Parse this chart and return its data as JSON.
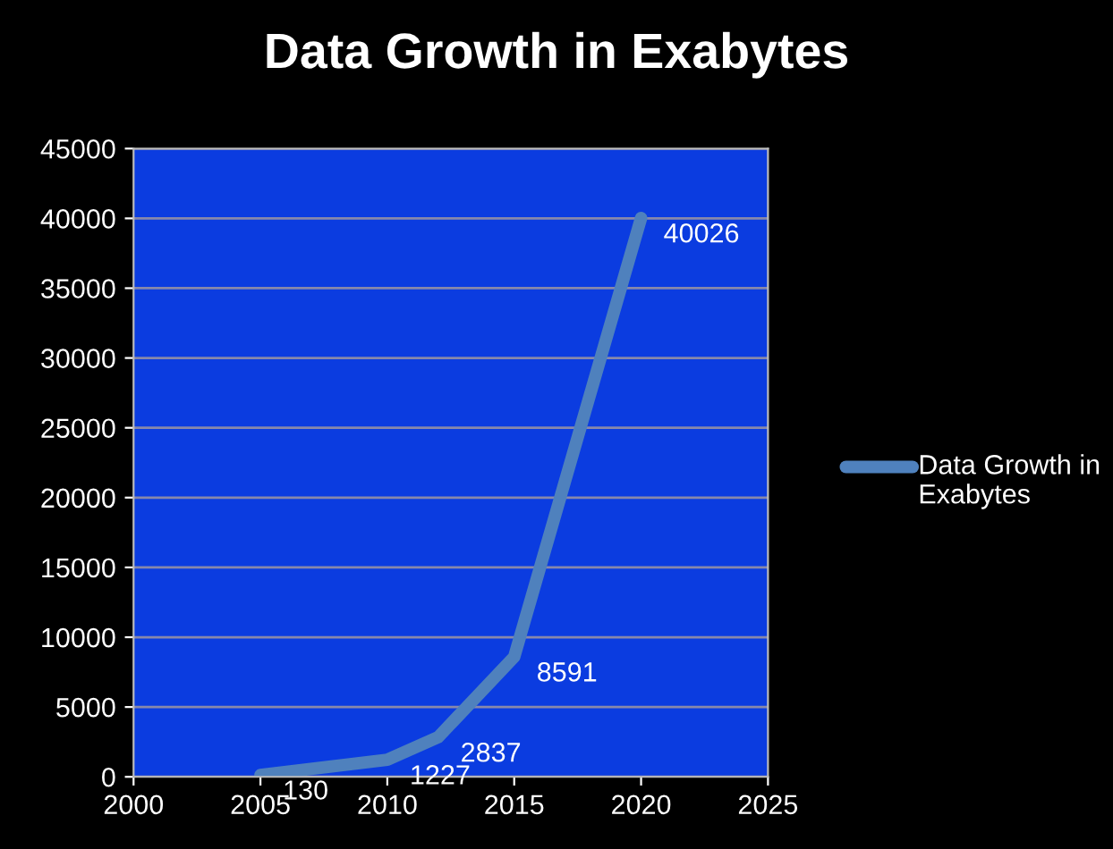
{
  "chart_data": {
    "type": "line",
    "title": "Data Growth in Exabytes",
    "x": [
      2005,
      2010,
      2012,
      2015,
      2020
    ],
    "series": [
      {
        "name": "Data Growth in Exabytes",
        "color": "#4f81bd",
        "values": [
          130,
          1227,
          2837,
          8591,
          40026
        ]
      }
    ],
    "xlim": [
      2000,
      2025
    ],
    "xticks": [
      2000,
      2005,
      2010,
      2015,
      2020,
      2025
    ],
    "ylim": [
      0,
      45000
    ],
    "yticks": [
      0,
      5000,
      10000,
      15000,
      20000,
      25000,
      30000,
      35000,
      40000,
      45000
    ],
    "grid": "y",
    "legend": "right",
    "data_labels": true,
    "marker": "none",
    "line_style": "solid"
  }
}
